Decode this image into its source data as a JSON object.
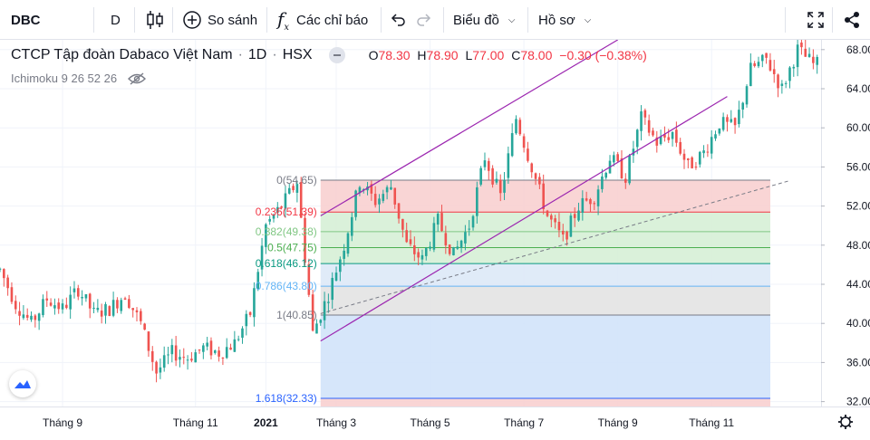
{
  "toolbar": {
    "symbol": "DBC",
    "interval": "D",
    "compare_label": "So sánh",
    "indicators_label": "Các chỉ báo",
    "chart_type_label": "Biểu đồ",
    "profile_label": "Hồ sơ",
    "icons": [
      "candles-icon",
      "plus-circle-icon",
      "fx-icon",
      "undo-icon",
      "redo-icon",
      "chevron-down-icon",
      "fullscreen-icon",
      "share-icon"
    ]
  },
  "legend": {
    "title": "CTCP Tập đoàn Dabaco Việt Nam",
    "interval": "1D",
    "exchange": "HSX",
    "open_label": "O",
    "open": "78.30",
    "high_label": "H",
    "high": "78.90",
    "low_label": "L",
    "low": "77.00",
    "close_label": "C",
    "close": "78.00",
    "change": "−0.30 (−0.38%)",
    "indicator": "Ichimoku 9 26 52 26"
  },
  "colors": {
    "up": "#26a69a",
    "down": "#ef5350",
    "channel": "#9c27b0",
    "trend": "#787b86",
    "fib_red": "#f8d0d0",
    "fib_green": "#d6f0d6",
    "fib_light": "#dde9f7",
    "fib_gray": "#e3e3e3",
    "fib_blue": "#d2e3fa"
  },
  "chart_data": {
    "type": "candlestick",
    "title": "CTCP Tập đoàn Dabaco Việt Nam · 1D · HSX",
    "ylim": [
      31.5,
      69
    ],
    "yticks": [
      "68.00",
      "64.00",
      "60.00",
      "56.00",
      "52.00",
      "48.00",
      "44.00",
      "40.00",
      "36.00",
      "32.00"
    ],
    "xlim": [
      0,
      52.5
    ],
    "xticks": [
      {
        "label": "Tháng 9",
        "x": 4
      },
      {
        "label": "Tháng 11",
        "x": 12.5
      },
      {
        "label": "2021",
        "x": 17
      },
      {
        "label": "Tháng 3",
        "x": 21.5
      },
      {
        "label": "Tháng 5",
        "x": 27.5
      },
      {
        "label": "Tháng 7",
        "x": 33.5
      },
      {
        "label": "Tháng 9",
        "x": 39.5
      },
      {
        "label": "Tháng 11",
        "x": 45.5
      }
    ],
    "grid": true,
    "series_path": [
      [
        0,
        45.5
      ],
      [
        1,
        42.0
      ],
      [
        2,
        40.0
      ],
      [
        3,
        42.5
      ],
      [
        4,
        41.5
      ],
      [
        5,
        43.5
      ],
      [
        6,
        41.0
      ],
      [
        7,
        41.5
      ],
      [
        8,
        43.0
      ],
      [
        9,
        40.0
      ],
      [
        10,
        35.0
      ],
      [
        11,
        37.0
      ],
      [
        12,
        36.5
      ],
      [
        13,
        37.5
      ],
      [
        14,
        37.0
      ],
      [
        15,
        38.0
      ],
      [
        16,
        41.0
      ],
      [
        17,
        50.0
      ],
      [
        18,
        52.0
      ],
      [
        19,
        54.5
      ],
      [
        20,
        39.0
      ],
      [
        21,
        43.0
      ],
      [
        22,
        48.0
      ],
      [
        23,
        54.5
      ],
      [
        24,
        52.5
      ],
      [
        25,
        54.0
      ],
      [
        26,
        48.0
      ],
      [
        27,
        46.5
      ],
      [
        28,
        50.5
      ],
      [
        29,
        47.0
      ],
      [
        30,
        50.0
      ],
      [
        31,
        57.0
      ],
      [
        32,
        53.0
      ],
      [
        33,
        61.0
      ],
      [
        34,
        56.0
      ],
      [
        35,
        51.0
      ],
      [
        36,
        48.5
      ],
      [
        37,
        52.0
      ],
      [
        38,
        53.0
      ],
      [
        39,
        57.0
      ],
      [
        40,
        55.0
      ],
      [
        41,
        61.0
      ],
      [
        42,
        58.5
      ],
      [
        43,
        59.5
      ],
      [
        44,
        56.0
      ],
      [
        45,
        57.5
      ],
      [
        46,
        60.5
      ],
      [
        47,
        60.0
      ],
      [
        48,
        66.0
      ],
      [
        49,
        67.0
      ],
      [
        50,
        64.0
      ],
      [
        51,
        68.0
      ],
      [
        52,
        66.5
      ]
    ],
    "fibonacci": {
      "x_start": 20.5,
      "levels": [
        {
          "ratio": "0",
          "price": 54.65,
          "label": "0(54.65)"
        },
        {
          "ratio": "0.236",
          "price": 51.39,
          "label": "0.236(51.39)"
        },
        {
          "ratio": "0.382",
          "price": 49.38,
          "label": "0.382(49.38)"
        },
        {
          "ratio": "0.5",
          "price": 47.75,
          "label": "0.5(47.75)"
        },
        {
          "ratio": "0.618",
          "price": 46.12,
          "label": "0.618(46.12)"
        },
        {
          "ratio": "0.786",
          "price": 43.8,
          "label": "0.786(43.80)"
        },
        {
          "ratio": "1",
          "price": 40.85,
          "label": "1(40.85)"
        },
        {
          "ratio": "1.618",
          "price": 32.33,
          "label": "1.618(32.33)"
        }
      ]
    },
    "channel": {
      "lower": [
        [
          20.5,
          38.2
        ],
        [
          46.5,
          63.2
        ]
      ],
      "upper": [
        [
          20.5,
          51.0
        ],
        [
          39.5,
          69.0
        ]
      ]
    },
    "trendline": [
      [
        20.5,
        41.0
      ],
      [
        50.5,
        54.6
      ]
    ]
  }
}
